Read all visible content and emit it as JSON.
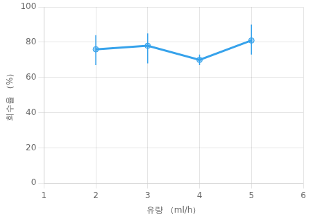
{
  "chart_data": {
    "type": "line",
    "xlabel": "유량 （ml/h）",
    "ylabel": "회수율 （%）",
    "x": [
      2,
      3,
      4,
      5
    ],
    "values": [
      76,
      78,
      70,
      81
    ],
    "yerr_lower": [
      9,
      10,
      3,
      8
    ],
    "yerr_upper": [
      8,
      7,
      3,
      9
    ],
    "marker": "circle",
    "xlim": [
      1,
      6
    ],
    "xticks": [
      1,
      2,
      3,
      4,
      5,
      6
    ],
    "ylim": [
      0,
      100
    ],
    "yticks": [
      0,
      20,
      40,
      60,
      80,
      100
    ],
    "grid": true
  }
}
